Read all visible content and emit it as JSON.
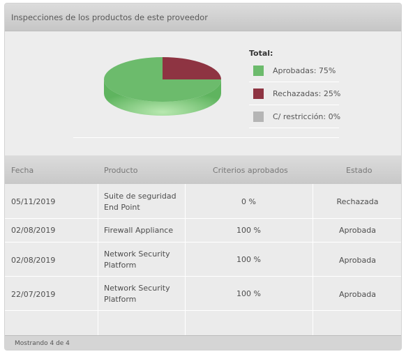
{
  "panel": {
    "title": "Inspecciones de los productos de este proveedor"
  },
  "chart_data": {
    "type": "pie",
    "title": "Total:",
    "categories": [
      "Aprobadas",
      "Rechazadas",
      "C/ restricción"
    ],
    "values": [
      75,
      25,
      0
    ],
    "unit": "%",
    "colors": [
      "#6cbb6c",
      "#8e3442",
      "#b5b5b5"
    ],
    "legend_position": "right",
    "legend_labels": [
      "Aprobadas: 75%",
      "Rechazadas: 25%",
      "C/ restricción: 0%"
    ]
  },
  "table": {
    "headers": [
      "Fecha",
      "Producto",
      "Criterios aprobados",
      "Estado"
    ],
    "rows": [
      {
        "fecha": "05/11/2019",
        "producto": [
          "Suite de seguridad",
          "End Point"
        ],
        "criterios": "0 %",
        "estado": "Rechazada"
      },
      {
        "fecha": "02/08/2019",
        "producto": [
          "Firewall Appliance"
        ],
        "criterios": "100 %",
        "estado": "Aprobada"
      },
      {
        "fecha": "02/08/2019",
        "producto": [
          "Network Security",
          "Platform"
        ],
        "criterios": "100 %",
        "estado": "Aprobada"
      },
      {
        "fecha": "22/07/2019",
        "producto": [
          "Network Security",
          "Platform"
        ],
        "criterios": "100 %",
        "estado": "Aprobada"
      }
    ]
  },
  "footer": {
    "status": "Mostrando 4 de 4"
  }
}
